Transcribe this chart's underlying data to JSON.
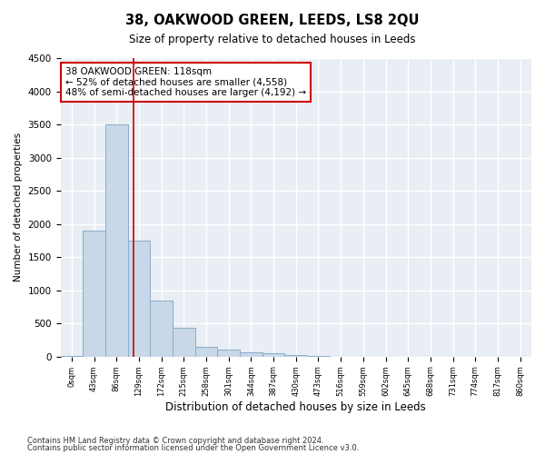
{
  "title": "38, OAKWOOD GREEN, LEEDS, LS8 2QU",
  "subtitle": "Size of property relative to detached houses in Leeds",
  "xlabel": "Distribution of detached houses by size in Leeds",
  "ylabel": "Number of detached properties",
  "bar_color": "#c8d8e8",
  "bar_edge_color": "#8aacc8",
  "categories": [
    "0sqm",
    "43sqm",
    "86sqm",
    "129sqm",
    "172sqm",
    "215sqm",
    "258sqm",
    "301sqm",
    "344sqm",
    "387sqm",
    "430sqm",
    "473sqm",
    "516sqm",
    "559sqm",
    "602sqm",
    "645sqm",
    "688sqm",
    "731sqm",
    "774sqm",
    "817sqm",
    "860sqm"
  ],
  "values": [
    5,
    1900,
    3500,
    1750,
    850,
    430,
    150,
    100,
    70,
    55,
    30,
    5,
    0,
    0,
    0,
    0,
    0,
    0,
    0,
    0,
    0
  ],
  "ylim": [
    0,
    4500
  ],
  "yticks": [
    0,
    500,
    1000,
    1500,
    2000,
    2500,
    3000,
    3500,
    4000,
    4500
  ],
  "property_line_x": 2.74,
  "property_line_color": "#cc0000",
  "annotation_text": "38 OAKWOOD GREEN: 118sqm\n← 52% of detached houses are smaller (4,558)\n48% of semi-detached houses are larger (4,192) →",
  "annotation_box_color": "#cc0000",
  "footer_line1": "Contains HM Land Registry data © Crown copyright and database right 2024.",
  "footer_line2": "Contains public sector information licensed under the Open Government Licence v3.0.",
  "bg_color": "#ffffff",
  "plot_bg_color": "#e8eef4",
  "grid_color": "#ffffff"
}
